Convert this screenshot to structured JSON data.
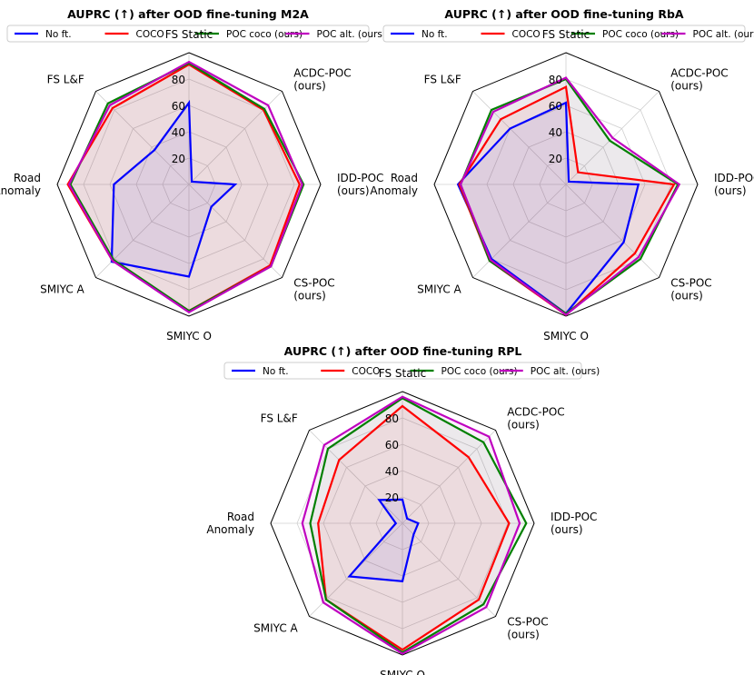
{
  "chart_data": [
    {
      "type": "radar",
      "title": "AUPRC (↑) after OOD fine-tuning M2A",
      "axes": [
        "FS Static",
        "ACDC-POC\n(ours)",
        "IDD-POC\n(ours)",
        "CS-POC\n(ours)",
        "SMIYC O",
        "SMIYC A",
        "Road\nAnomaly",
        "FS L&F"
      ],
      "rlim": [
        0,
        100
      ],
      "rticks": [
        "20",
        "40",
        "60",
        "80"
      ],
      "legend": "top",
      "series": [
        {
          "name": "No ft.",
          "color": "#0000ff",
          "values": [
            62,
            3,
            35,
            24,
            70,
            83,
            57,
            37
          ]
        },
        {
          "name": "COCO",
          "color": "#ff0000",
          "values": [
            91,
            80,
            84,
            87,
            96,
            82,
            92,
            82
          ]
        },
        {
          "name": "POC coco (ours)",
          "color": "#008000",
          "values": [
            92,
            81,
            87,
            88,
            96,
            81,
            90,
            87
          ]
        },
        {
          "name": "POC alt. (ours)",
          "color": "#bf00bf",
          "values": [
            93,
            85,
            86,
            88,
            97,
            82,
            91,
            85
          ]
        }
      ]
    },
    {
      "type": "radar",
      "title": "AUPRC (↑) after OOD fine-tuning RbA",
      "axes": [
        "FS Static",
        "ACDC-POC\n(ours)",
        "IDD-POC\n(ours)",
        "CS-POC\n(ours)",
        "SMIYC O",
        "SMIYC A",
        "Road\nAnomaly",
        "FS L&F"
      ],
      "rlim": [
        0,
        100
      ],
      "rticks": [
        "20",
        "40",
        "60",
        "80"
      ],
      "legend": "top",
      "series": [
        {
          "name": "No ft.",
          "color": "#0000ff",
          "values": [
            62,
            3,
            55,
            62,
            98,
            80,
            82,
            60
          ]
        },
        {
          "name": "COCO",
          "color": "#ff0000",
          "values": [
            74,
            13,
            82,
            74,
            99,
            82,
            81,
            70
          ]
        },
        {
          "name": "POC coco (ours)",
          "color": "#008000",
          "values": [
            80,
            47,
            85,
            80,
            98,
            82,
            80,
            80
          ]
        },
        {
          "name": "POC alt. (ours)",
          "color": "#bf00bf",
          "values": [
            81,
            50,
            86,
            78,
            99,
            81,
            80,
            78
          ]
        }
      ]
    },
    {
      "type": "radar",
      "title": "AUPRC (↑) after OOD fine-tuning RPL",
      "axes": [
        "FS Static",
        "ACDC-POC\n(ours)",
        "IDD-POC\n(ours)",
        "CS-POC\n(ours)",
        "SMIYC O",
        "SMIYC A",
        "Road\nAnomaly",
        "FS L&F"
      ],
      "rlim": [
        0,
        100
      ],
      "rticks": [
        "20",
        "40",
        "60",
        "80"
      ],
      "legend": "top",
      "series": [
        {
          "name": "No ft.",
          "color": "#0000ff",
          "values": [
            18,
            5,
            12,
            12,
            44,
            57,
            5,
            25
          ]
        },
        {
          "name": "COCO",
          "color": "#ff0000",
          "values": [
            89,
            71,
            81,
            82,
            96,
            82,
            64,
            68
          ]
        },
        {
          "name": "POC coco (ours)",
          "color": "#008000",
          "values": [
            95,
            87,
            94,
            87,
            98,
            82,
            70,
            80
          ]
        },
        {
          "name": "POC alt. (ours)",
          "color": "#bf00bf",
          "values": [
            96,
            93,
            89,
            90,
            99,
            85,
            76,
            84
          ]
        }
      ]
    }
  ]
}
